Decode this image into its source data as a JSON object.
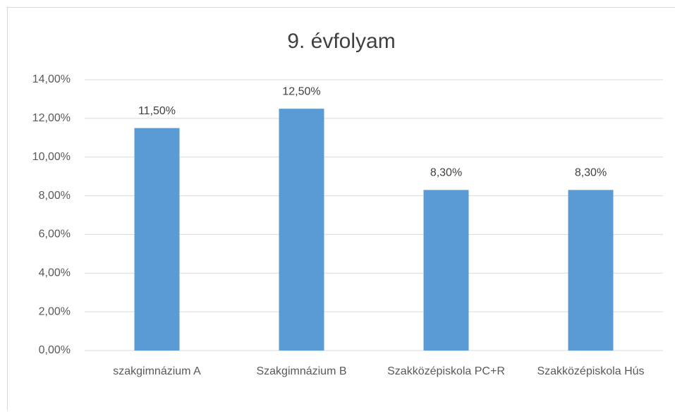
{
  "chart_data": {
    "type": "bar",
    "title": "9. évfolyam",
    "categories": [
      "szakgimnázium A",
      "Szakgimnázium B",
      "Szakközépiskola PC+R",
      "Szakközépiskola Hús"
    ],
    "values": [
      11.5,
      12.5,
      8.3,
      8.3
    ],
    "value_labels": [
      "11,50%",
      "12,50%",
      "8,30%",
      "8,30%"
    ],
    "color": "#5b9bd5",
    "ylim": [
      0,
      14
    ],
    "yticks": [
      {
        "value": 0,
        "label": "0,00%"
      },
      {
        "value": 2,
        "label": "2,00%"
      },
      {
        "value": 4,
        "label": "4,00%"
      },
      {
        "value": 6,
        "label": "6,00%"
      },
      {
        "value": 8,
        "label": "8,00%"
      },
      {
        "value": 10,
        "label": "10,00%"
      },
      {
        "value": 12,
        "label": "12,00%"
      },
      {
        "value": 14,
        "label": "14,00%"
      }
    ],
    "grid": true
  }
}
